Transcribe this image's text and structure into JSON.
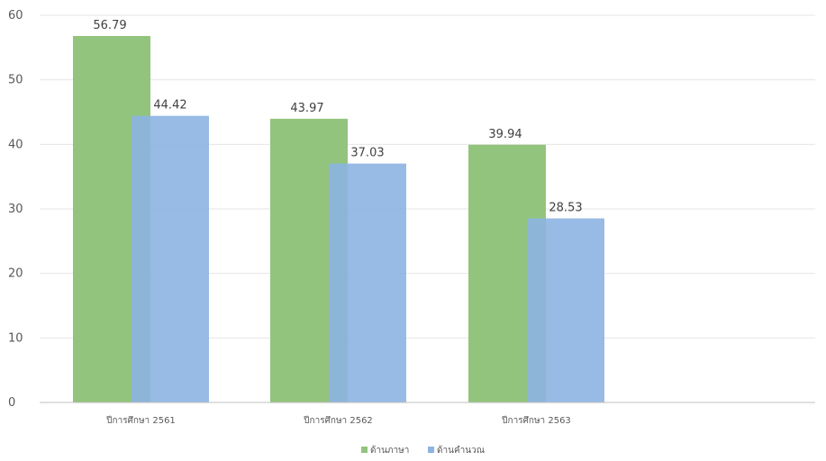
{
  "chart_data": {
    "type": "bar",
    "title": "",
    "xlabel": "",
    "ylabel": "",
    "ylim": [
      0,
      60
    ],
    "yticks": [
      0,
      10,
      20,
      30,
      40,
      50,
      60
    ],
    "grid": true,
    "legend_position": "bottom",
    "categories": [
      "ปีการศึกษา 2561",
      "ปีการศึกษา 2562",
      "ปีการศึกษา 2563"
    ],
    "series": [
      {
        "name": "ด้านภาษา",
        "color": "#93c47d",
        "values": [
          56.79,
          43.97,
          39.94
        ],
        "labels": [
          "56.79",
          "43.97",
          "39.94"
        ]
      },
      {
        "name": "ด้านคำนวณ",
        "color": "#8db4e2",
        "values": [
          44.42,
          37.03,
          28.53
        ],
        "labels": [
          "44.42",
          "37.03",
          "28.53"
        ]
      }
    ]
  }
}
